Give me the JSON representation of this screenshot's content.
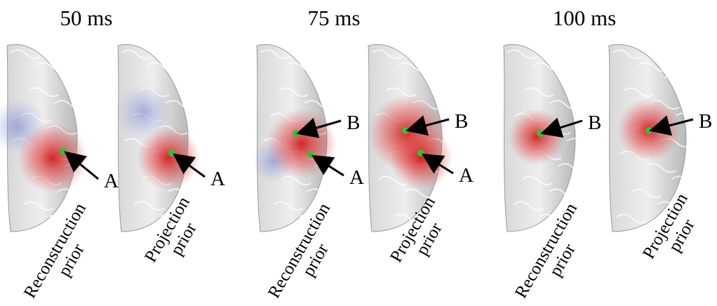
{
  "groups": [
    {
      "title": "50 ms",
      "panels": [
        {
          "caption": [
            "Reconstruction",
            "prior"
          ],
          "markers": [
            "A"
          ]
        },
        {
          "caption": [
            "Projection",
            "prior"
          ],
          "markers": [
            "A"
          ]
        }
      ]
    },
    {
      "title": "75 ms",
      "panels": [
        {
          "caption": [
            "Reconstruction",
            "prior"
          ],
          "markers": [
            "B",
            "A"
          ]
        },
        {
          "caption": [
            "Projection",
            "prior"
          ],
          "markers": [
            "B",
            "A"
          ]
        }
      ]
    },
    {
      "title": "100 ms",
      "panels": [
        {
          "caption": [
            "Reconstruction",
            "prior"
          ],
          "markers": [
            "B"
          ]
        },
        {
          "caption": [
            "Projection",
            "prior"
          ],
          "markers": [
            "B"
          ]
        }
      ]
    }
  ]
}
